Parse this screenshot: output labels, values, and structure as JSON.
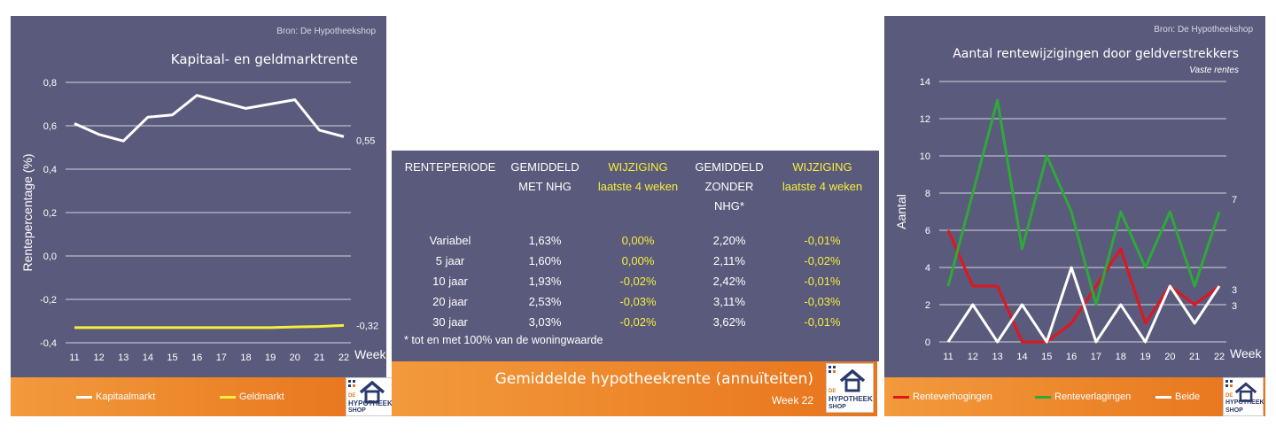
{
  "left_panel": {
    "source": "Bron: De Hypotheekshop",
    "legend": [
      {
        "label": "Kapitaalmarkt",
        "color": "#ffffff"
      },
      {
        "label": "Geldmarkt",
        "color": "#f5ef3a"
      }
    ]
  },
  "middle_panel": {
    "headers": [
      [
        "RENTEPERIODE",
        ""
      ],
      [
        "GEMIDDELD",
        "MET NHG"
      ],
      [
        "WIJZIGING",
        "laatste 4 weken"
      ],
      [
        "GEMIDDELD",
        "ZONDER NHG*"
      ],
      [
        "WIJZIGING",
        "laatste 4 weken"
      ]
    ],
    "rows": [
      [
        "Variabel",
        "1,63%",
        "0,00%",
        "2,20%",
        "-0,01%"
      ],
      [
        "5 jaar",
        "1,60%",
        "0,00%",
        "2,11%",
        "-0,02%"
      ],
      [
        "10 jaar",
        "1,93%",
        "-0,02%",
        "2,42%",
        "-0,01%"
      ],
      [
        "20 jaar",
        "2,53%",
        "-0,03%",
        "3,11%",
        "-0,03%"
      ],
      [
        "30 jaar",
        "3,03%",
        "-0,02%",
        "3,62%",
        "-0,01%"
      ]
    ],
    "note": "* tot en met 100% van de woningwaarde",
    "title": "Gemiddelde hypotheekrente (annuïteiten)",
    "week": "Week 22"
  },
  "right_panel": {
    "source": "Bron: De Hypotheekshop",
    "legend": [
      {
        "label": "Renteverhogingen",
        "color": "#e0161e"
      },
      {
        "label": "Renteverlagingen",
        "color": "#2fa83a"
      },
      {
        "label": "Beide",
        "color": "#ffffff"
      }
    ]
  },
  "logo": {
    "line1": "DE",
    "line2": "HYPOTHEEK",
    "line3": "SHOP"
  },
  "chart_data": [
    {
      "type": "line",
      "title": "Kapitaal- en geldmarktrente",
      "xlabel": "Week",
      "ylabel": "Rentepercentage (%)",
      "x": [
        "11",
        "12",
        "13",
        "14",
        "15",
        "16",
        "17",
        "18",
        "19",
        "20",
        "21",
        "22"
      ],
      "ylim": [
        -0.4,
        0.8
      ],
      "yticks": [
        "-0,4",
        "-0,2",
        "0,0",
        "0,2",
        "0,4",
        "0,6",
        "0,8"
      ],
      "grid": true,
      "series": [
        {
          "name": "Kapitaalmarkt",
          "color": "#ffffff",
          "values": [
            0.61,
            0.56,
            0.53,
            0.64,
            0.65,
            0.74,
            0.71,
            0.68,
            0.7,
            0.72,
            0.58,
            0.55
          ],
          "end_label": "0,55"
        },
        {
          "name": "Geldmarkt",
          "color": "#f5ef3a",
          "values": [
            -0.33,
            -0.33,
            -0.33,
            -0.33,
            -0.33,
            -0.33,
            -0.33,
            -0.33,
            -0.33,
            -0.327,
            -0.325,
            -0.32
          ],
          "end_label": "-0,32"
        }
      ],
      "legend": "bottom"
    },
    {
      "type": "line",
      "title": "Aantal rentewijzigingen door geldverstrekkers",
      "subtitle": "Vaste rentes",
      "xlabel": "Week",
      "ylabel": "Aantal",
      "x": [
        "11",
        "12",
        "13",
        "14",
        "15",
        "16",
        "17",
        "18",
        "19",
        "20",
        "21",
        "22"
      ],
      "ylim": [
        0,
        14
      ],
      "yticks": [
        "0",
        "2",
        "4",
        "6",
        "8",
        "10",
        "12",
        "14"
      ],
      "grid": true,
      "series": [
        {
          "name": "Renteverhogingen",
          "color": "#e0161e",
          "values": [
            6,
            3,
            3,
            0,
            0,
            1,
            3,
            5,
            1,
            3,
            2,
            3
          ],
          "end_label": "3"
        },
        {
          "name": "Renteverlagingen",
          "color": "#2fa83a",
          "values": [
            3,
            8,
            13,
            5,
            10,
            7,
            2,
            7,
            4,
            7,
            3,
            7
          ],
          "end_label": "7"
        },
        {
          "name": "Beide",
          "color": "#ffffff",
          "values": [
            0,
            2,
            0,
            2,
            0,
            4,
            0,
            2,
            0,
            3,
            1,
            3
          ],
          "end_label": "3"
        }
      ],
      "legend": "bottom"
    }
  ]
}
